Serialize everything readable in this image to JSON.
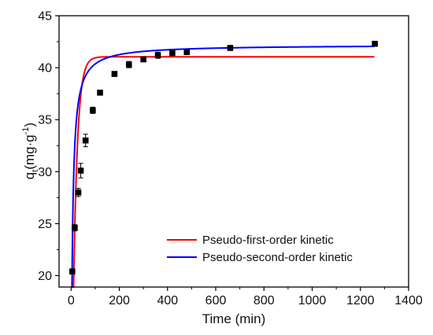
{
  "chart_data": {
    "type": "scatter",
    "xlabel": "Time (min)",
    "ylabel": {
      "base": "q",
      "sub": "t",
      "rest": "(mg·g",
      "sup": "-1",
      "close": ")"
    },
    "xlim": [
      -50,
      1400
    ],
    "ylim": [
      18.9,
      45
    ],
    "x_ticks": [
      0,
      200,
      400,
      600,
      800,
      1000,
      1200,
      1400
    ],
    "y_ticks": [
      20,
      25,
      30,
      35,
      40,
      45
    ],
    "grid": false,
    "legend_position": "bottom-right",
    "points": {
      "x": [
        5,
        15,
        30,
        40,
        60,
        90,
        120,
        180,
        240,
        300,
        360,
        420,
        480,
        660,
        1260
      ],
      "y": [
        20.4,
        24.6,
        28.0,
        30.1,
        33.0,
        35.9,
        37.6,
        39.4,
        40.3,
        40.8,
        41.2,
        41.4,
        41.5,
        41.9,
        42.3
      ],
      "err": [
        0.0,
        0.3,
        0.4,
        0.7,
        0.6,
        0.3,
        0.2,
        0.2,
        0.3,
        0.2,
        0.3,
        0.2,
        0.2,
        0.2,
        0.2
      ],
      "color": "#000000"
    },
    "series": [
      {
        "name": "Pseudo-first-order kinetic",
        "model": "first_order",
        "qe": 41.05,
        "k": 0.06,
        "x_start": 3,
        "x_end": 1260,
        "color": "#ff0000"
      },
      {
        "name": "Pseudo-second-order kinetic",
        "model": "second_order",
        "qe": 42.2,
        "k": 0.0052,
        "x_start": 3,
        "x_end": 1260,
        "color": "#0000ff"
      }
    ]
  }
}
